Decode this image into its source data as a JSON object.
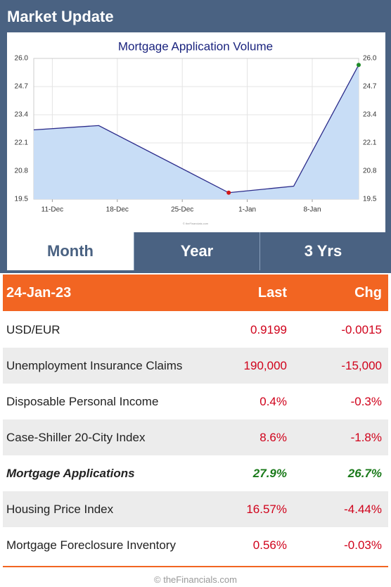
{
  "header": {
    "title": "Market Update"
  },
  "chart_data": {
    "type": "area",
    "title": "Mortgage Application Volume",
    "x": [
      "9-Dec",
      "16-Dec",
      "30-Dec",
      "6-Jan",
      "13-Jan"
    ],
    "values": [
      22.7,
      22.9,
      19.8,
      20.1,
      25.7
    ],
    "line_color": "#2b2b8a",
    "fill_color": "#c8ddf6",
    "low_marker_color": "#d01818",
    "last_marker_color": "#1f8a2a",
    "xlim": [
      "9-Dec",
      "13-Jan"
    ],
    "xticks": [
      "11-Dec",
      "18-Dec",
      "25-Dec",
      "1-Jan",
      "8-Jan"
    ],
    "ylim": [
      19.5,
      26.0
    ],
    "yticks": [
      19.5,
      20.8,
      22.1,
      23.4,
      24.7,
      {
        "value": 26,
        "label": "26.0"
      }
    ],
    "grid": true
  },
  "tabs": {
    "items": [
      "Month",
      "Year",
      "3 Yrs"
    ],
    "active": 0
  },
  "table": {
    "header": [
      "24-Jan-23",
      "Last",
      "Chg"
    ],
    "rows": [
      [
        "USD/EUR",
        "0.9199",
        "-0.0015"
      ],
      [
        "Unemployment Insurance Claims",
        "190,000",
        "-15,000"
      ],
      [
        "Disposable Personal Income",
        "0.4%",
        "-0.3%"
      ],
      [
        "Case-Shiller 20-City Index",
        "8.6%",
        "-1.8%"
      ],
      [
        "Mortgage Applications",
        "27.9%",
        "26.7%"
      ],
      [
        "Housing Price Index",
        "16.57%",
        "-4.44%"
      ],
      [
        "Mortgage Foreclosure Inventory",
        "0.56%",
        "-0.03%"
      ]
    ]
  },
  "footer": "© theFinancials.com"
}
